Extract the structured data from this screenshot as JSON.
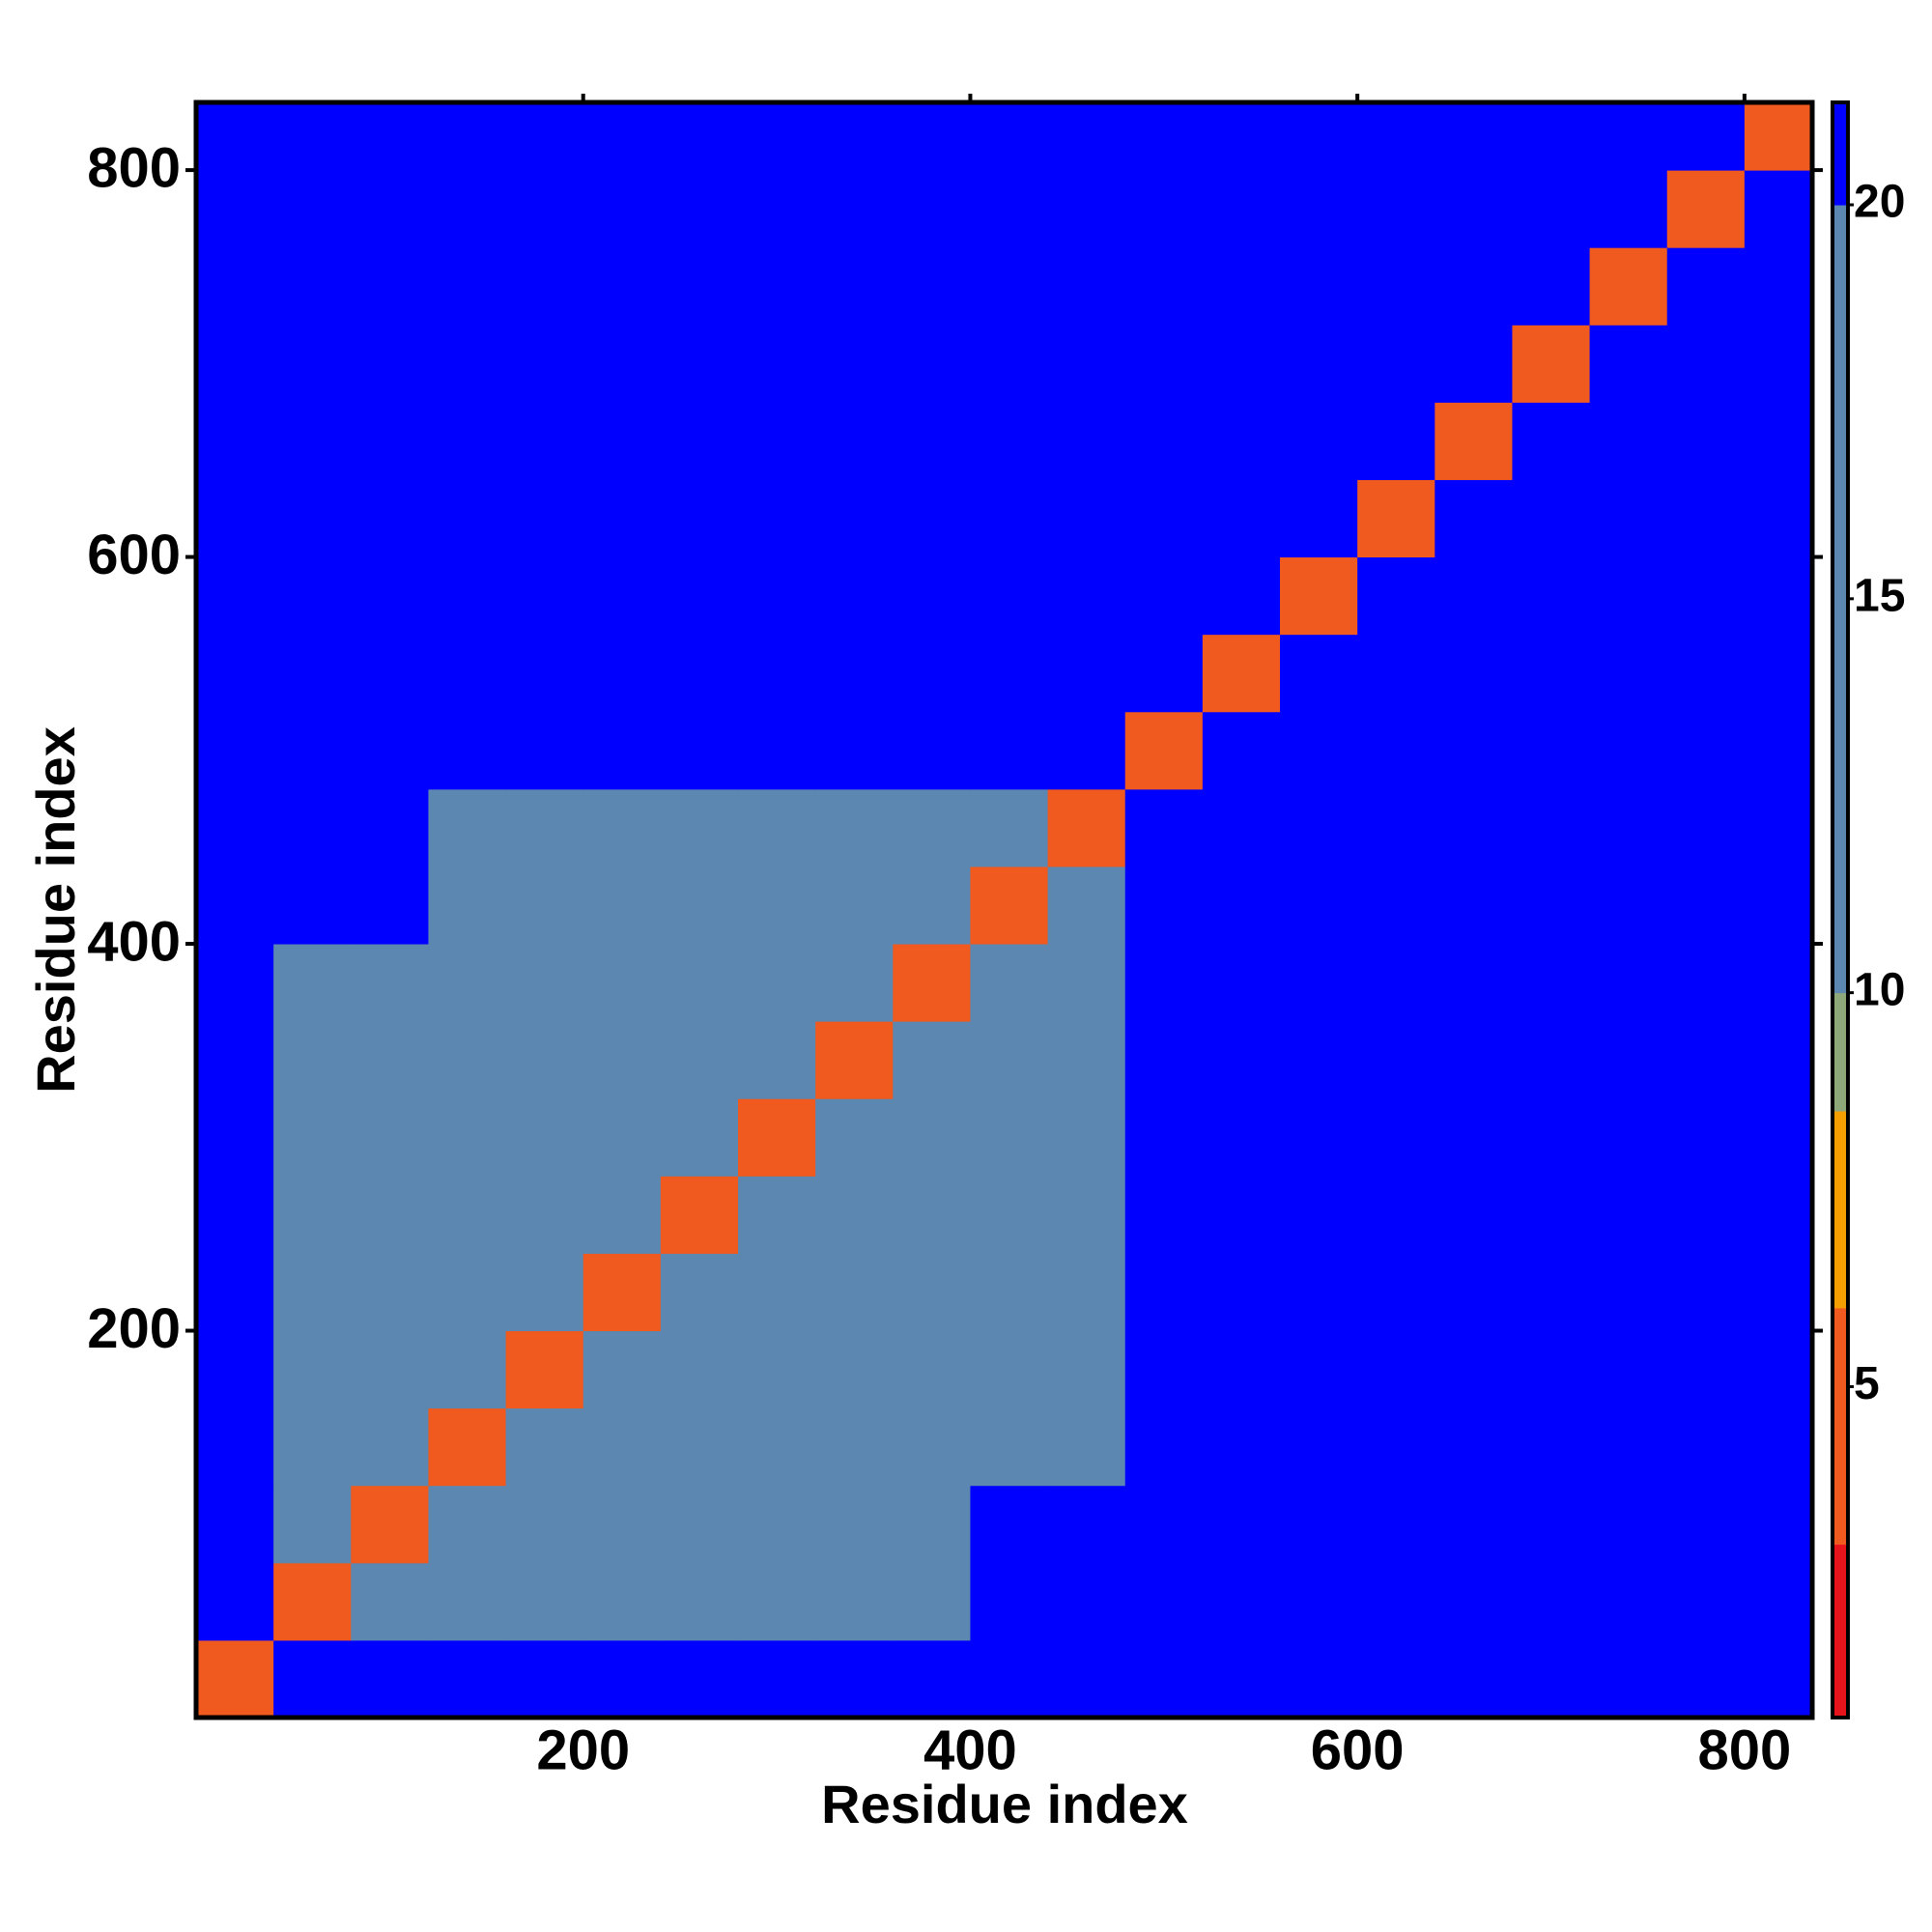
{
  "chart_data": {
    "type": "heatmap",
    "x_label": "Residue index",
    "y_label": "Residue index",
    "x_bins": [
      0,
      40,
      80,
      120,
      160,
      200,
      240,
      280,
      320,
      360,
      400,
      440,
      480,
      520,
      560,
      600,
      640,
      680,
      720,
      760,
      800,
      835
    ],
    "y_bins": [
      0,
      40,
      80,
      120,
      160,
      200,
      240,
      280,
      320,
      360,
      400,
      440,
      480,
      520,
      560,
      600,
      640,
      680,
      720,
      760,
      800,
      835
    ],
    "xlim": [
      0,
      835
    ],
    "ylim": [
      0,
      835
    ],
    "xticks": [
      200,
      400,
      600,
      800
    ],
    "yticks": [
      200,
      400,
      600,
      800
    ],
    "z": [
      [
        5,
        21,
        21,
        21,
        21,
        21,
        21,
        21,
        21,
        21,
        21,
        21,
        21,
        21,
        21,
        21,
        21,
        21,
        21,
        21,
        21
      ],
      [
        21,
        5,
        15,
        19,
        19,
        19,
        18,
        16,
        16,
        19,
        21,
        21,
        21,
        21,
        21,
        21,
        21,
        21,
        21,
        21,
        21
      ],
      [
        21,
        15,
        5,
        15,
        17,
        18,
        19,
        16,
        15,
        19,
        21,
        21,
        21,
        21,
        21,
        21,
        21,
        21,
        21,
        21,
        21
      ],
      [
        21,
        19,
        15,
        5,
        12,
        14,
        14,
        14,
        15,
        14,
        16,
        18,
        21,
        21,
        21,
        21,
        21,
        21,
        21,
        21,
        21
      ],
      [
        21,
        19,
        17,
        12,
        5,
        12,
        14,
        15,
        14,
        13,
        16,
        17,
        21,
        21,
        21,
        21,
        21,
        21,
        21,
        21,
        21
      ],
      [
        21,
        19,
        18,
        14,
        12,
        5,
        13,
        19,
        16,
        14,
        12,
        16,
        21,
        21,
        21,
        21,
        21,
        21,
        21,
        21,
        21
      ],
      [
        21,
        18,
        19,
        14,
        14,
        13,
        5,
        12,
        19,
        17,
        15,
        16,
        21,
        21,
        21,
        21,
        21,
        21,
        21,
        21,
        21
      ],
      [
        21,
        16,
        16,
        14,
        15,
        19,
        12,
        5,
        12,
        18,
        16,
        17,
        21,
        21,
        21,
        21,
        21,
        21,
        21,
        21,
        21
      ],
      [
        21,
        16,
        15,
        15,
        14,
        16,
        19,
        12,
        5,
        14,
        17,
        15,
        21,
        21,
        21,
        21,
        21,
        21,
        21,
        21,
        21
      ],
      [
        21,
        19,
        19,
        14,
        13,
        14,
        17,
        18,
        14,
        5,
        12,
        15,
        21,
        21,
        21,
        21,
        21,
        21,
        21,
        21,
        21
      ],
      [
        21,
        21,
        21,
        16,
        16,
        12,
        15,
        16,
        17,
        12,
        5,
        12,
        21,
        21,
        21,
        21,
        21,
        21,
        21,
        21,
        21
      ],
      [
        21,
        21,
        21,
        18,
        17,
        16,
        16,
        17,
        15,
        15,
        12,
        5,
        21,
        21,
        21,
        21,
        21,
        21,
        21,
        21,
        21
      ],
      [
        21,
        21,
        21,
        21,
        21,
        21,
        21,
        21,
        21,
        21,
        21,
        21,
        5,
        21,
        21,
        21,
        21,
        21,
        21,
        21,
        21
      ],
      [
        21,
        21,
        21,
        21,
        21,
        21,
        21,
        21,
        21,
        21,
        21,
        21,
        21,
        5,
        21,
        21,
        21,
        21,
        21,
        21,
        21
      ],
      [
        21,
        21,
        21,
        21,
        21,
        21,
        21,
        21,
        21,
        21,
        21,
        21,
        21,
        21,
        5,
        21,
        21,
        21,
        21,
        21,
        21
      ],
      [
        21,
        21,
        21,
        21,
        21,
        21,
        21,
        21,
        21,
        21,
        21,
        21,
        21,
        21,
        21,
        5,
        21,
        21,
        21,
        21,
        21
      ],
      [
        21,
        21,
        21,
        21,
        21,
        21,
        21,
        21,
        21,
        21,
        21,
        21,
        21,
        21,
        21,
        21,
        5,
        21,
        21,
        21,
        21
      ],
      [
        21,
        21,
        21,
        21,
        21,
        21,
        21,
        21,
        21,
        21,
        21,
        21,
        21,
        21,
        21,
        21,
        21,
        5,
        21,
        21,
        21
      ],
      [
        21,
        21,
        21,
        21,
        21,
        21,
        21,
        21,
        21,
        21,
        21,
        21,
        21,
        21,
        21,
        21,
        21,
        21,
        5,
        21,
        21
      ],
      [
        21,
        21,
        21,
        21,
        21,
        21,
        21,
        21,
        21,
        21,
        21,
        21,
        21,
        21,
        21,
        21,
        21,
        21,
        21,
        5,
        21
      ],
      [
        21,
        21,
        21,
        21,
        21,
        21,
        21,
        21,
        21,
        21,
        21,
        21,
        21,
        21,
        21,
        21,
        21,
        21,
        21,
        21,
        5
      ]
    ],
    "colorbar": {
      "lim": [
        0.8,
        21.3
      ],
      "ticks": [
        5,
        10,
        15,
        20
      ],
      "levels": [
        0.8,
        3,
        6,
        8.5,
        10,
        20,
        21.3
      ],
      "colors": [
        "#e8141c",
        "#f05a1e",
        "#f5a000",
        "#8fa87a",
        "#5b87b0",
        "#0000ff"
      ]
    }
  }
}
